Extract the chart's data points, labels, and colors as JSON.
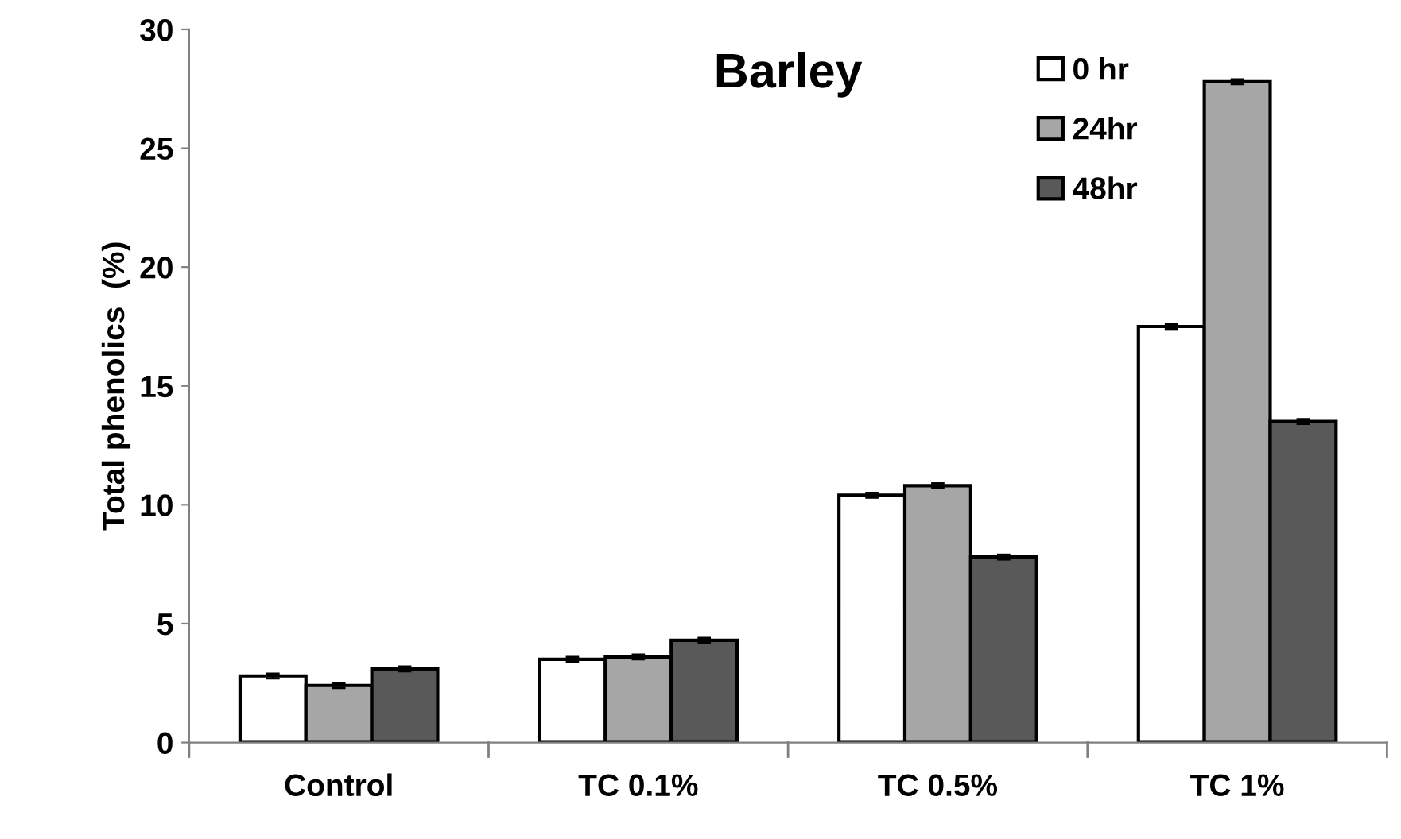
{
  "chart_data": {
    "type": "bar",
    "title": "Barley",
    "ylabel": "Total phenolics  (%)",
    "categories": [
      "Control",
      "TC 0.1%",
      "TC 0.5%",
      "TC 1%"
    ],
    "series": [
      {
        "name": "0 hr",
        "color": "#ffffff",
        "values": [
          2.8,
          3.5,
          10.4,
          17.5
        ],
        "errors": [
          0.1,
          0.1,
          0.1,
          0.1
        ]
      },
      {
        "name": "24hr",
        "color": "#a6a6a6",
        "values": [
          2.4,
          3.6,
          10.8,
          27.8
        ],
        "errors": [
          0.1,
          0.1,
          0.1,
          0.1
        ]
      },
      {
        "name": "48hr",
        "color": "#595959",
        "values": [
          3.1,
          4.3,
          7.8,
          13.5
        ],
        "errors": [
          0.1,
          0.1,
          0.1,
          0.1
        ]
      }
    ],
    "ylim": [
      0,
      30
    ],
    "yticks": [
      0,
      5,
      10,
      15,
      20,
      25,
      30
    ],
    "grid": false,
    "legend": "top right"
  }
}
